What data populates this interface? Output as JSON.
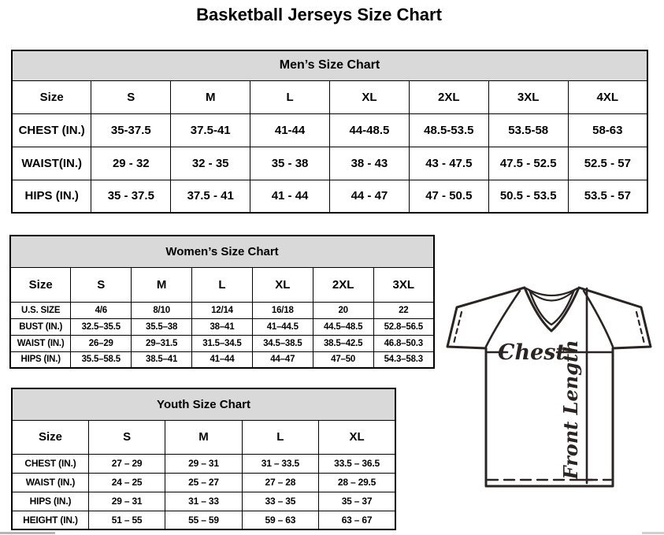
{
  "page": {
    "title": "Basketball Jerseys Size Chart"
  },
  "colors": {
    "table_header_bg": "#d9d9d9",
    "border": "#000000",
    "diagram_line": "#2a2422"
  },
  "tables": [
    {
      "id": "mens",
      "title": "Men’s Size Chart",
      "header_row": [
        "Size",
        "S",
        "M",
        "L",
        "XL",
        "2XL",
        "3XL",
        "4XL"
      ],
      "rows": [
        [
          "CHEST (IN.)",
          "35-37.5",
          "37.5-41",
          "41-44",
          "44-48.5",
          "48.5-53.5",
          "53.5-58",
          "58-63"
        ],
        [
          "WAIST(IN.)",
          "29 - 32",
          "32 - 35",
          "35 - 38",
          "38 - 43",
          "43 - 47.5",
          "47.5 - 52.5",
          "52.5 - 57"
        ],
        [
          "HIPS (IN.)",
          "35 - 37.5",
          "37.5 - 41",
          "41 - 44",
          "44 - 47",
          "47 - 50.5",
          "50.5 - 53.5",
          "53.5 - 57"
        ]
      ]
    },
    {
      "id": "womens",
      "title": "Women’s Size Chart",
      "header_row": [
        "Size",
        "S",
        "M",
        "L",
        "XL",
        "2XL",
        "3XL"
      ],
      "rows": [
        [
          "U.S. SIZE",
          "4/6",
          "8/10",
          "12/14",
          "16/18",
          "20",
          "22"
        ],
        [
          "BUST (IN.)",
          "32.5–35.5",
          "35.5–38",
          "38–41",
          "41–44.5",
          "44.5–48.5",
          "52.8–56.5"
        ],
        [
          "WAIST (IN.)",
          "26–29",
          "29–31.5",
          "31.5–34.5",
          "34.5–38.5",
          "38.5–42.5",
          "46.8–50.3"
        ],
        [
          "HIPS (IN.)",
          "35.5–58.5",
          "38.5–41",
          "41–44",
          "44–47",
          "47–50",
          "54.3–58.3"
        ]
      ]
    },
    {
      "id": "youth",
      "title": "Youth Size Chart",
      "header_row": [
        "Size",
        "S",
        "M",
        "L",
        "XL"
      ],
      "rows": [
        [
          "CHEST (IN.)",
          "27 – 29",
          "29 – 31",
          "31 – 33.5",
          "33.5 – 36.5"
        ],
        [
          "WAIST (IN.)",
          "24 – 25",
          "25 – 27",
          "27 – 28",
          "28 – 29.5"
        ],
        [
          "HIPS (IN.)",
          "29 – 31",
          "31 – 33",
          "33 – 35",
          "35 – 37"
        ],
        [
          "HEIGHT (IN.)",
          "51 – 55",
          "55 – 59",
          "59 – 63",
          "63 – 67"
        ]
      ]
    }
  ],
  "diagram": {
    "chest_label": "Chest",
    "front_length_label": "Front Length"
  }
}
